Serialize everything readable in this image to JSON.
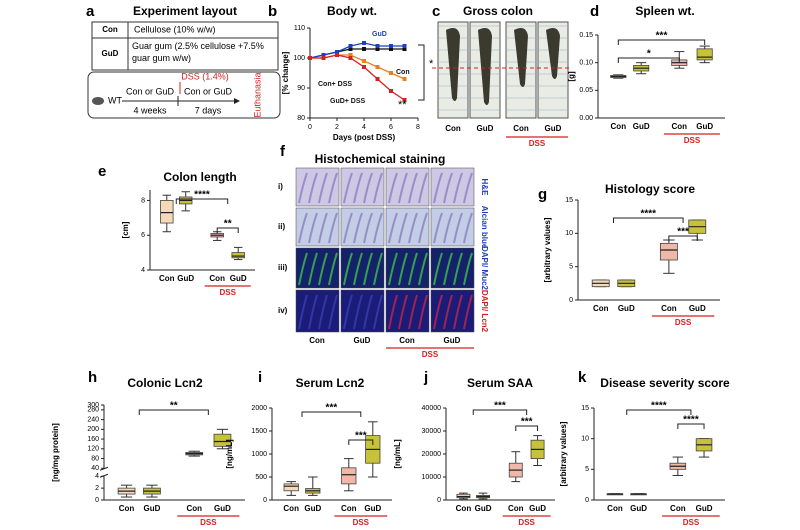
{
  "chart_data": [
    {
      "panel": "b",
      "type": "line",
      "title": "Body wt.",
      "xlabel": "Days (post DSS)",
      "ylabel": "[% change]",
      "x": [
        0,
        1,
        2,
        3,
        4,
        5,
        6,
        7
      ],
      "xlim": [
        0,
        8
      ],
      "xticks": [
        0,
        2,
        4,
        6,
        8
      ],
      "ylim": [
        80,
        110
      ],
      "yticks": [
        80,
        90,
        100,
        110
      ],
      "series": [
        {
          "name": "Con",
          "color": "#111111",
          "values": [
            100,
            101,
            102,
            103,
            103,
            103,
            103,
            103
          ]
        },
        {
          "name": "GuD",
          "color": "#1f3fbf",
          "values": [
            100,
            101,
            102,
            104,
            105,
            104,
            104,
            104
          ]
        },
        {
          "name": "Con+ DSS",
          "color": "#e8821e",
          "values": [
            100,
            100,
            101,
            101,
            99,
            97,
            95,
            93
          ]
        },
        {
          "name": "GuD+ DSS",
          "color": "#d42020",
          "values": [
            100,
            100,
            101,
            100,
            97,
            93,
            89,
            86
          ]
        }
      ],
      "annotations": [
        "*",
        "**"
      ]
    },
    {
      "panel": "d",
      "type": "box",
      "title": "Spleen wt.",
      "ylabel": "[g]",
      "categories": [
        "Con",
        "GuD",
        "Con",
        "GuD"
      ],
      "group_label": "DSS",
      "colors": [
        "#f5d9b8",
        "#c8c23a",
        "#f0b8a8",
        "#c8c23a"
      ],
      "ylim": [
        0,
        0.15
      ],
      "yticks": [
        {
          "value": 0,
          "label": "0.00"
        },
        {
          "value": 0.05,
          "label": "0.05"
        },
        {
          "value": 0.1,
          "label": "0.10"
        },
        {
          "value": 0.15,
          "label": "0.15"
        }
      ],
      "boxes": [
        {
          "min": 0.072,
          "q1": 0.073,
          "median": 0.075,
          "q3": 0.077,
          "max": 0.078
        },
        {
          "min": 0.08,
          "q1": 0.085,
          "median": 0.09,
          "q3": 0.095,
          "max": 0.1
        },
        {
          "min": 0.09,
          "q1": 0.095,
          "median": 0.1,
          "q3": 0.105,
          "max": 0.12
        },
        {
          "min": 0.1,
          "q1": 0.105,
          "median": 0.11,
          "q3": 0.125,
          "max": 0.13
        }
      ],
      "annotations": [
        "***",
        "*"
      ]
    },
    {
      "panel": "e",
      "type": "box",
      "title": "Colon length",
      "ylabel": "[cm]",
      "categories": [
        "Con",
        "GuD",
        "Con",
        "GuD"
      ],
      "group_label": "DSS",
      "colors": [
        "#f5d9b8",
        "#c8c23a",
        "#f0b8a8",
        "#c8c23a"
      ],
      "ylim": [
        4,
        8.6
      ],
      "yticks": [
        4,
        6,
        8
      ],
      "boxes": [
        {
          "min": 6.2,
          "q1": 6.7,
          "median": 7.3,
          "q3": 8,
          "max": 8.3
        },
        {
          "min": 7.4,
          "q1": 7.8,
          "median": 8,
          "q3": 8.2,
          "max": 8.5
        },
        {
          "min": 5.7,
          "q1": 5.9,
          "median": 6,
          "q3": 6.1,
          "max": 6.2
        },
        {
          "min": 4.6,
          "q1": 4.7,
          "median": 4.8,
          "q3": 5,
          "max": 5.3
        }
      ],
      "annotations": [
        "****",
        "**"
      ]
    },
    {
      "panel": "g",
      "type": "box",
      "title": "Histology score",
      "ylabel": "[arbitrary values]",
      "categories": [
        "Con",
        "GuD",
        "Con",
        "GuD"
      ],
      "group_label": "DSS",
      "colors": [
        "#f5d9b8",
        "#c8c23a",
        "#f0b8a8",
        "#c8c23a"
      ],
      "ylim": [
        0,
        15
      ],
      "yticks": [
        0,
        5,
        10,
        15
      ],
      "boxes": [
        {
          "min": 2,
          "q1": 2,
          "median": 2.5,
          "q3": 3,
          "max": 3
        },
        {
          "min": 2,
          "q1": 2,
          "median": 2.5,
          "q3": 3,
          "max": 3
        },
        {
          "min": 4,
          "q1": 6,
          "median": 7.5,
          "q3": 8.5,
          "max": 9
        },
        {
          "min": 9,
          "q1": 10,
          "median": 11,
          "q3": 12,
          "max": 12
        }
      ],
      "annotations": [
        "****",
        "***"
      ]
    },
    {
      "panel": "h",
      "type": "box",
      "title": "Colonic Lcn2",
      "ylabel": "[ng/mg protein]",
      "categories": [
        "Con",
        "GuD",
        "Con",
        "GuD"
      ],
      "group_label": "DSS",
      "colors": [
        "#f5d9b8",
        "#c8c23a",
        "#f0b8a8",
        "#c8c23a"
      ],
      "ylim": [
        0,
        300
      ],
      "ybreak": [
        4,
        40
      ],
      "yticks": [
        0,
        2,
        4,
        40,
        80,
        120,
        160,
        200,
        240,
        280,
        300
      ],
      "boxes": [
        {
          "min": 0.5,
          "q1": 1,
          "median": 1.5,
          "q3": 2,
          "max": 2.5
        },
        {
          "min": 0.5,
          "q1": 1,
          "median": 1.5,
          "q3": 2,
          "max": 2.5
        },
        {
          "min": 90,
          "q1": 95,
          "median": 100,
          "q3": 105,
          "max": 110
        },
        {
          "min": 120,
          "q1": 130,
          "median": 150,
          "q3": 180,
          "max": 200
        }
      ],
      "annotations": [
        "**"
      ]
    },
    {
      "panel": "i",
      "type": "box",
      "title": "Serum Lcn2",
      "ylabel": "[ng/mL]",
      "categories": [
        "Con",
        "GuD",
        "Con",
        "GuD"
      ],
      "group_label": "DSS",
      "colors": [
        "#f5d9b8",
        "#c8c23a",
        "#f0b8a8",
        "#c8c23a"
      ],
      "ylim": [
        0,
        2000
      ],
      "yticks": [
        0,
        500,
        1000,
        1500,
        2000
      ],
      "boxes": [
        {
          "min": 100,
          "q1": 200,
          "median": 300,
          "q3": 350,
          "max": 400
        },
        {
          "min": 100,
          "q1": 150,
          "median": 200,
          "q3": 250,
          "max": 500
        },
        {
          "min": 200,
          "q1": 350,
          "median": 550,
          "q3": 700,
          "max": 900
        },
        {
          "min": 500,
          "q1": 800,
          "median": 1100,
          "q3": 1400,
          "max": 1700
        }
      ],
      "annotations": [
        "***",
        "***"
      ]
    },
    {
      "panel": "j",
      "type": "box",
      "title": "Serum SAA",
      "ylabel": "[ng/mL]",
      "categories": [
        "Con",
        "GuD",
        "Con",
        "GuD"
      ],
      "group_label": "DSS",
      "colors": [
        "#f5d9b8",
        "#c8c23a",
        "#f0b8a8",
        "#c8c23a"
      ],
      "ylim": [
        0,
        40000
      ],
      "yticks": [
        0,
        10000,
        20000,
        30000,
        40000
      ],
      "boxes": [
        {
          "min": 500,
          "q1": 1000,
          "median": 1500,
          "q3": 2500,
          "max": 3000
        },
        {
          "min": 500,
          "q1": 1000,
          "median": 1500,
          "q3": 2000,
          "max": 3000
        },
        {
          "min": 8000,
          "q1": 10000,
          "median": 13000,
          "q3": 16000,
          "max": 21000
        },
        {
          "min": 15000,
          "q1": 18000,
          "median": 22000,
          "q3": 26000,
          "max": 28000
        }
      ],
      "annotations": [
        "***",
        "***"
      ]
    },
    {
      "panel": "k",
      "type": "box",
      "title": "Disease severity score",
      "ylabel": "[arbitrary values]",
      "categories": [
        "Con",
        "GuD",
        "Con",
        "GuD"
      ],
      "group_label": "DSS",
      "colors": [
        "#f5d9b8",
        "#c8c23a",
        "#f0b8a8",
        "#c8c23a"
      ],
      "ylim": [
        0,
        15
      ],
      "yticks": [
        0,
        5,
        10,
        15
      ],
      "boxes": [
        {
          "min": 1,
          "q1": 1,
          "median": 1,
          "q3": 1,
          "max": 1
        },
        {
          "min": 1,
          "q1": 1,
          "median": 1,
          "q3": 1,
          "max": 1
        },
        {
          "min": 4,
          "q1": 5,
          "median": 5.5,
          "q3": 6,
          "max": 7
        },
        {
          "min": 7,
          "q1": 8,
          "median": 9,
          "q3": 10,
          "max": 10
        }
      ],
      "annotations": [
        "****",
        "****"
      ]
    }
  ],
  "experiment": {
    "panel": "a",
    "title": "Experiment layout",
    "table": [
      [
        "Con",
        "Cellulose (10% w/w)"
      ],
      [
        "GuD",
        "Guar gum (2.5% cellulose +7.5% guar gum w/w)"
      ]
    ],
    "diagram": {
      "strain": "WT",
      "diet1": "Con or GuD",
      "duration1": "4 weeks",
      "treatment": "DSS (1.4%)",
      "diet2": "Con or GuD",
      "duration2": "7 days",
      "end": "Euthanasia"
    }
  },
  "gross_colon": {
    "panel": "c",
    "title": "Gross colon",
    "groups": [
      "Con",
      "GuD",
      "Con",
      "GuD"
    ],
    "treatment": "DSS"
  },
  "staining": {
    "panel": "f",
    "title": "Histochemical staining",
    "rows": [
      "i)",
      "ii)",
      "iii)",
      "iv)"
    ],
    "stains": [
      "H&E",
      "Alcian blue",
      "DAPI/ Muc2",
      "DAPI/ Lcn2"
    ],
    "groups": [
      "Con",
      "GuD",
      "Con",
      "GuD"
    ],
    "treatment": "DSS"
  }
}
